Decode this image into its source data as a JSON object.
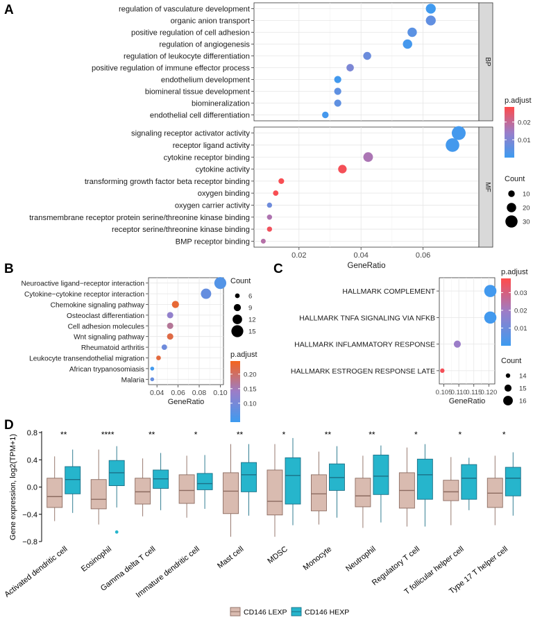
{
  "chart_data": [
    {
      "panel_label": "A",
      "type": "scatter",
      "subtype": "dotplot",
      "xlabel": "GeneRatio",
      "xlim": [
        0.0055,
        0.078
      ],
      "xticks": [
        0.02,
        0.04,
        0.06
      ],
      "xtick_labels": [
        "0.02",
        "0.04",
        "0.06"
      ],
      "color_by": "p.adjust",
      "size_by": "Count",
      "color_legend": {
        "title": "p.adjust",
        "range": [
          0.0,
          0.0285
        ],
        "ticks": [
          0.01,
          0.02
        ],
        "tick_labels": [
          "0.01",
          "0.02"
        ],
        "low_color": "#3d9bf0",
        "high_color": "#ff4a4a"
      },
      "size_legend": {
        "title": "Count",
        "values": [
          10,
          20,
          30
        ]
      },
      "facets": [
        {
          "name": "BP",
          "terms": [
            {
              "label": "regulation of vasculature development",
              "x": 0.0625,
              "count": 22,
              "padj": 0.0005
            },
            {
              "label": "organic anion transport",
              "x": 0.0625,
              "count": 22,
              "padj": 0.0055
            },
            {
              "label": "positive regulation of cell adhesion",
              "x": 0.0565,
              "count": 20,
              "padj": 0.0045
            },
            {
              "label": "regulation of angiogenesis",
              "x": 0.055,
              "count": 20,
              "padj": 0.0012
            },
            {
              "label": "regulation of leukocyte differentiation",
              "x": 0.042,
              "count": 15,
              "padj": 0.007
            },
            {
              "label": "positive regulation of immune effector process",
              "x": 0.0365,
              "count": 13,
              "padj": 0.0095
            },
            {
              "label": "endothelium development",
              "x": 0.0325,
              "count": 12,
              "padj": 0.0008
            },
            {
              "label": "biomineral tissue development",
              "x": 0.0325,
              "count": 12,
              "padj": 0.0052
            },
            {
              "label": "biomineralization",
              "x": 0.0325,
              "count": 12,
              "padj": 0.0052
            },
            {
              "label": "endothelial cell differentiation",
              "x": 0.0285,
              "count": 10,
              "padj": 0.0012
            }
          ]
        },
        {
          "name": "MF",
          "terms": [
            {
              "label": "signaling receptor activator activity",
              "x": 0.0715,
              "count": 36,
              "padj": 0.001
            },
            {
              "label": "receptor ligand activity",
              "x": 0.0695,
              "count": 35,
              "padj": 0.001
            },
            {
              "label": "cytokine receptor binding",
              "x": 0.0423,
              "count": 21,
              "padj": 0.0165
            },
            {
              "label": "cytokine activity",
              "x": 0.034,
              "count": 17,
              "padj": 0.027
            },
            {
              "label": "transforming growth factor beta receptor binding",
              "x": 0.0143,
              "count": 7,
              "padj": 0.0275
            },
            {
              "label": "oxygen binding",
              "x": 0.0125,
              "count": 6,
              "padj": 0.0275
            },
            {
              "label": "oxygen carrier activity",
              "x": 0.0105,
              "count": 5,
              "padj": 0.0075
            },
            {
              "label": "transmembrane receptor protein serine/threonine kinase binding",
              "x": 0.0105,
              "count": 5,
              "padj": 0.017
            },
            {
              "label": "receptor serine/threonine kinase binding",
              "x": 0.0105,
              "count": 5,
              "padj": 0.0265
            },
            {
              "label": "BMP receptor binding",
              "x": 0.0085,
              "count": 4,
              "padj": 0.018
            }
          ]
        }
      ]
    },
    {
      "panel_label": "B",
      "type": "scatter",
      "subtype": "dotplot",
      "xlabel": "GeneRatio",
      "xlim": [
        0.032,
        0.103
      ],
      "xticks": [
        0.04,
        0.06,
        0.08,
        0.1
      ],
      "xtick_labels": [
        "0.04",
        "0.06",
        "0.08",
        "0.10"
      ],
      "color_legend": {
        "title": "p.adjust",
        "range": [
          0.035,
          0.245
        ],
        "ticks": [
          0.1,
          0.15,
          0.2
        ],
        "tick_labels": [
          "0.10",
          "0.15",
          "0.20"
        ],
        "low_color": "#3d9bf0",
        "high_color": "#f4641c"
      },
      "size_legend": {
        "title": "Count",
        "values": [
          6,
          9,
          12,
          15
        ]
      },
      "terms": [
        {
          "label": "Neuroactive ligand−receptor interaction",
          "x": 0.1,
          "count": 15,
          "padj": 0.06
        },
        {
          "label": "Cytokine−cytokine receptor interaction",
          "x": 0.0865,
          "count": 13,
          "padj": 0.08
        },
        {
          "label": "Chemokine signaling pathway",
          "x": 0.0575,
          "count": 9,
          "padj": 0.23
        },
        {
          "label": "Osteoclast differentiation",
          "x": 0.0525,
          "count": 8,
          "padj": 0.13
        },
        {
          "label": "Cell adhesion molecules",
          "x": 0.0525,
          "count": 8,
          "padj": 0.17
        },
        {
          "label": "Wnt signaling pathway",
          "x": 0.0525,
          "count": 8,
          "padj": 0.22
        },
        {
          "label": "Rheumatoid arthritis",
          "x": 0.047,
          "count": 7,
          "padj": 0.09
        },
        {
          "label": "Leukocyte transendothelial migration",
          "x": 0.0415,
          "count": 6,
          "padj": 0.225
        },
        {
          "label": "African trypanosomiasis",
          "x": 0.0355,
          "count": 5,
          "padj": 0.04
        },
        {
          "label": "Malaria",
          "x": 0.0355,
          "count": 5,
          "padj": 0.08
        }
      ]
    },
    {
      "panel_label": "C",
      "type": "scatter",
      "subtype": "dotplot",
      "xlabel": "GeneRatio",
      "xlim": [
        0.1035,
        0.122
      ],
      "xticks": [
        0.105,
        0.11,
        0.115,
        0.12
      ],
      "xtick_labels": [
        "0.105",
        "0.110",
        "0.115",
        "0.120"
      ],
      "color_legend": {
        "title": "p.adjust",
        "range": [
          0.0,
          0.038
        ],
        "ticks": [
          0.01,
          0.02,
          0.03
        ],
        "tick_labels": [
          "0.01",
          "0.02",
          "0.03"
        ],
        "low_color": "#3d9bf0",
        "high_color": "#ff4a4a"
      },
      "size_legend": {
        "title": "Count",
        "values": [
          14,
          15,
          16
        ]
      },
      "terms": [
        {
          "label": "HALLMARK COMPLEMENT",
          "x": 0.1205,
          "count": 17,
          "padj": 0.001
        },
        {
          "label": "HALLMARK TNFA SIGNALING VIA NFKB",
          "x": 0.1205,
          "count": 17,
          "padj": 0.001
        },
        {
          "label": "HALLMARK INFLAMMATORY RESPONSE",
          "x": 0.1095,
          "count": 15,
          "padj": 0.019
        },
        {
          "label": "HALLMARK ESTROGEN RESPONSE LATE",
          "x": 0.1045,
          "count": 14,
          "padj": 0.036
        }
      ]
    },
    {
      "panel_label": "D",
      "type": "box",
      "ylabel": "Gene expression, log2(TPM+1)",
      "ylim": [
        -0.8,
        0.8
      ],
      "yticks": [
        -0.8,
        -0.4,
        0.0,
        0.4,
        0.8
      ],
      "ytick_labels": [
        "−0.8",
        "−0.4",
        "0.0",
        "0.4",
        "0.8"
      ],
      "series": [
        {
          "name": "CD146 LEXP",
          "fill": "#d9bbb0",
          "stroke": "#8c6b60"
        },
        {
          "name": "CD146 HEXP",
          "fill": "#26b5cc",
          "stroke": "#1b6f86"
        }
      ],
      "categories": [
        {
          "name": "Activated dendritic cell",
          "sig": "**",
          "low": {
            "wlo": -0.5,
            "q1": -0.3,
            "med": -0.14,
            "q3": 0.13,
            "whi": 0.45
          },
          "high": {
            "wlo": -0.38,
            "q1": -0.1,
            "med": 0.11,
            "q3": 0.3,
            "whi": 0.55
          }
        },
        {
          "name": "Eosinophil",
          "sig": "****",
          "low": {
            "wlo": -0.55,
            "q1": -0.32,
            "med": -0.18,
            "q3": 0.11,
            "whi": 0.55
          },
          "high": {
            "wlo": -0.3,
            "q1": 0.02,
            "med": 0.21,
            "q3": 0.39,
            "whi": 0.6,
            "outliers": [
              -0.66
            ]
          }
        },
        {
          "name": "Gamma delta T cell",
          "sig": "**",
          "low": {
            "wlo": -0.43,
            "q1": -0.25,
            "med": -0.07,
            "q3": 0.13,
            "whi": 0.42
          },
          "high": {
            "wlo": -0.34,
            "q1": -0.02,
            "med": 0.12,
            "q3": 0.25,
            "whi": 0.5
          }
        },
        {
          "name": "Immature dendritic cell",
          "sig": "*",
          "low": {
            "wlo": -0.45,
            "q1": -0.24,
            "med": -0.05,
            "q3": 0.18,
            "whi": 0.46
          },
          "high": {
            "wlo": -0.32,
            "q1": -0.04,
            "med": 0.05,
            "q3": 0.2,
            "whi": 0.47
          }
        },
        {
          "name": "Mast cell",
          "sig": "**",
          "low": {
            "wlo": -0.73,
            "q1": -0.39,
            "med": -0.06,
            "q3": 0.21,
            "whi": 0.63
          },
          "high": {
            "wlo": -0.42,
            "q1": -0.07,
            "med": 0.18,
            "q3": 0.36,
            "whi": 0.63
          }
        },
        {
          "name": "MDSC",
          "sig": "*",
          "low": {
            "wlo": -0.73,
            "q1": -0.41,
            "med": -0.21,
            "q3": 0.25,
            "whi": 0.63
          },
          "high": {
            "wlo": -0.56,
            "q1": -0.25,
            "med": 0.17,
            "q3": 0.43,
            "whi": 0.72
          }
        },
        {
          "name": "Monocyte",
          "sig": "**",
          "low": {
            "wlo": -0.55,
            "q1": -0.35,
            "med": -0.1,
            "q3": 0.18,
            "whi": 0.52
          },
          "high": {
            "wlo": -0.45,
            "q1": -0.05,
            "med": 0.14,
            "q3": 0.34,
            "whi": 0.6
          }
        },
        {
          "name": "Neutrophil",
          "sig": "**",
          "low": {
            "wlo": -0.6,
            "q1": -0.29,
            "med": -0.13,
            "q3": 0.13,
            "whi": 0.46
          },
          "high": {
            "wlo": -0.52,
            "q1": -0.11,
            "med": 0.16,
            "q3": 0.47,
            "whi": 0.61
          }
        },
        {
          "name": "Regulatory T cell",
          "sig": "*",
          "low": {
            "wlo": -0.58,
            "q1": -0.31,
            "med": -0.05,
            "q3": 0.21,
            "whi": 0.58
          },
          "high": {
            "wlo": -0.58,
            "q1": -0.18,
            "med": 0.18,
            "q3": 0.41,
            "whi": 0.63
          }
        },
        {
          "name": "T follicular helper cell",
          "sig": "*",
          "low": {
            "wlo": -0.56,
            "q1": -0.2,
            "med": -0.07,
            "q3": 0.1,
            "whi": 0.44
          },
          "high": {
            "wlo": -0.34,
            "q1": -0.18,
            "med": 0.13,
            "q3": 0.33,
            "whi": 0.43
          }
        },
        {
          "name": "Type 17 T helper cell",
          "sig": "*",
          "low": {
            "wlo": -0.56,
            "q1": -0.3,
            "med": -0.09,
            "q3": 0.13,
            "whi": 0.46
          },
          "high": {
            "wlo": -0.42,
            "q1": -0.13,
            "med": 0.13,
            "q3": 0.29,
            "whi": 0.51
          }
        }
      ]
    }
  ]
}
